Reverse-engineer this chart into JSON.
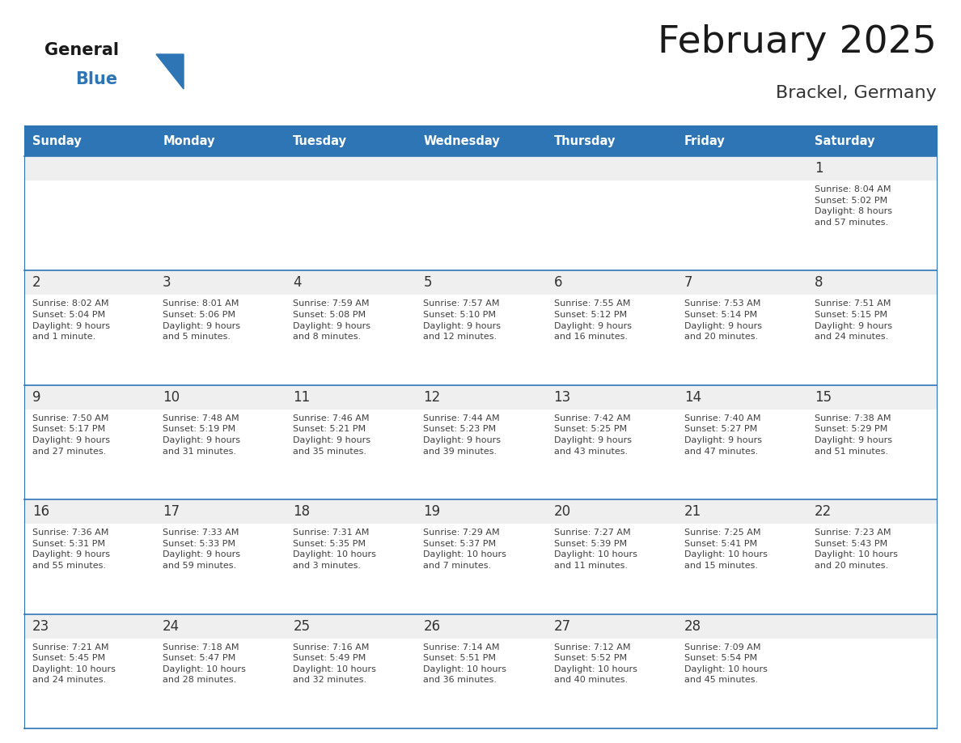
{
  "title": "February 2025",
  "subtitle": "Brackel, Germany",
  "header_bg": "#2E75B6",
  "header_text_color": "#FFFFFF",
  "cell_top_bg": "#EFEFEF",
  "cell_body_bg": "#FFFFFF",
  "border_color": "#2E75B6",
  "day_headers": [
    "Sunday",
    "Monday",
    "Tuesday",
    "Wednesday",
    "Thursday",
    "Friday",
    "Saturday"
  ],
  "title_color": "#1A1A1A",
  "subtitle_color": "#333333",
  "day_number_color": "#333333",
  "cell_text_color": "#404040",
  "weeks": [
    [
      null,
      null,
      null,
      null,
      null,
      null,
      {
        "day": "1",
        "sunrise": "8:04 AM",
        "sunset": "5:02 PM",
        "daylight": "8 hours\nand 57 minutes."
      }
    ],
    [
      {
        "day": "2",
        "sunrise": "8:02 AM",
        "sunset": "5:04 PM",
        "daylight": "9 hours\nand 1 minute."
      },
      {
        "day": "3",
        "sunrise": "8:01 AM",
        "sunset": "5:06 PM",
        "daylight": "9 hours\nand 5 minutes."
      },
      {
        "day": "4",
        "sunrise": "7:59 AM",
        "sunset": "5:08 PM",
        "daylight": "9 hours\nand 8 minutes."
      },
      {
        "day": "5",
        "sunrise": "7:57 AM",
        "sunset": "5:10 PM",
        "daylight": "9 hours\nand 12 minutes."
      },
      {
        "day": "6",
        "sunrise": "7:55 AM",
        "sunset": "5:12 PM",
        "daylight": "9 hours\nand 16 minutes."
      },
      {
        "day": "7",
        "sunrise": "7:53 AM",
        "sunset": "5:14 PM",
        "daylight": "9 hours\nand 20 minutes."
      },
      {
        "day": "8",
        "sunrise": "7:51 AM",
        "sunset": "5:15 PM",
        "daylight": "9 hours\nand 24 minutes."
      }
    ],
    [
      {
        "day": "9",
        "sunrise": "7:50 AM",
        "sunset": "5:17 PM",
        "daylight": "9 hours\nand 27 minutes."
      },
      {
        "day": "10",
        "sunrise": "7:48 AM",
        "sunset": "5:19 PM",
        "daylight": "9 hours\nand 31 minutes."
      },
      {
        "day": "11",
        "sunrise": "7:46 AM",
        "sunset": "5:21 PM",
        "daylight": "9 hours\nand 35 minutes."
      },
      {
        "day": "12",
        "sunrise": "7:44 AM",
        "sunset": "5:23 PM",
        "daylight": "9 hours\nand 39 minutes."
      },
      {
        "day": "13",
        "sunrise": "7:42 AM",
        "sunset": "5:25 PM",
        "daylight": "9 hours\nand 43 minutes."
      },
      {
        "day": "14",
        "sunrise": "7:40 AM",
        "sunset": "5:27 PM",
        "daylight": "9 hours\nand 47 minutes."
      },
      {
        "day": "15",
        "sunrise": "7:38 AM",
        "sunset": "5:29 PM",
        "daylight": "9 hours\nand 51 minutes."
      }
    ],
    [
      {
        "day": "16",
        "sunrise": "7:36 AM",
        "sunset": "5:31 PM",
        "daylight": "9 hours\nand 55 minutes."
      },
      {
        "day": "17",
        "sunrise": "7:33 AM",
        "sunset": "5:33 PM",
        "daylight": "9 hours\nand 59 minutes."
      },
      {
        "day": "18",
        "sunrise": "7:31 AM",
        "sunset": "5:35 PM",
        "daylight": "10 hours\nand 3 minutes."
      },
      {
        "day": "19",
        "sunrise": "7:29 AM",
        "sunset": "5:37 PM",
        "daylight": "10 hours\nand 7 minutes."
      },
      {
        "day": "20",
        "sunrise": "7:27 AM",
        "sunset": "5:39 PM",
        "daylight": "10 hours\nand 11 minutes."
      },
      {
        "day": "21",
        "sunrise": "7:25 AM",
        "sunset": "5:41 PM",
        "daylight": "10 hours\nand 15 minutes."
      },
      {
        "day": "22",
        "sunrise": "7:23 AM",
        "sunset": "5:43 PM",
        "daylight": "10 hours\nand 20 minutes."
      }
    ],
    [
      {
        "day": "23",
        "sunrise": "7:21 AM",
        "sunset": "5:45 PM",
        "daylight": "10 hours\nand 24 minutes."
      },
      {
        "day": "24",
        "sunrise": "7:18 AM",
        "sunset": "5:47 PM",
        "daylight": "10 hours\nand 28 minutes."
      },
      {
        "day": "25",
        "sunrise": "7:16 AM",
        "sunset": "5:49 PM",
        "daylight": "10 hours\nand 32 minutes."
      },
      {
        "day": "26",
        "sunrise": "7:14 AM",
        "sunset": "5:51 PM",
        "daylight": "10 hours\nand 36 minutes."
      },
      {
        "day": "27",
        "sunrise": "7:12 AM",
        "sunset": "5:52 PM",
        "daylight": "10 hours\nand 40 minutes."
      },
      {
        "day": "28",
        "sunrise": "7:09 AM",
        "sunset": "5:54 PM",
        "daylight": "10 hours\nand 45 minutes."
      },
      null
    ]
  ],
  "logo_general_color": "#1A1A1A",
  "logo_blue_color": "#2E75B6",
  "fig_width": 11.88,
  "fig_height": 9.18,
  "dpi": 100
}
